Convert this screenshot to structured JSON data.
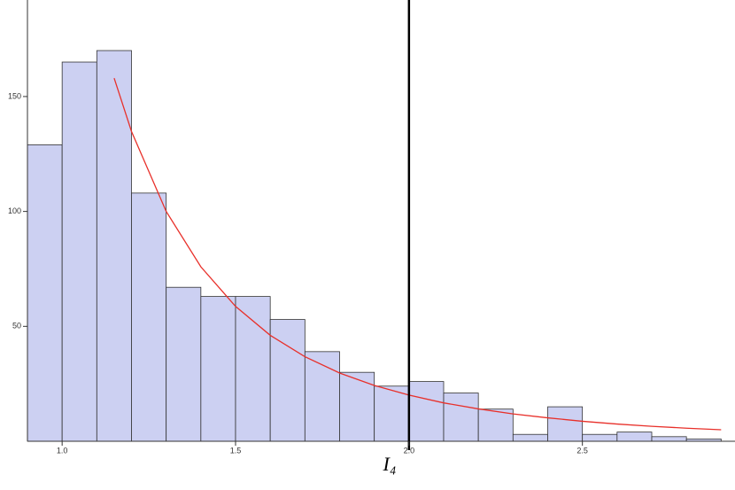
{
  "chart_data": {
    "type": "histogram",
    "bins": [
      0.9,
      1.0,
      1.1,
      1.2,
      1.3,
      1.4,
      1.5,
      1.6,
      1.7,
      1.8,
      1.9,
      2.0,
      2.1,
      2.2,
      2.3,
      2.4,
      2.5,
      2.6,
      2.7,
      2.8,
      2.9
    ],
    "values": [
      129,
      165,
      170,
      108,
      67,
      63,
      63,
      53,
      39,
      30,
      24,
      26,
      21,
      14,
      3,
      15,
      3,
      4,
      2,
      1
    ],
    "color": "#ccd0f2",
    "curve": {
      "color": "#e8302a",
      "x": [
        1.15,
        1.2,
        1.3,
        1.4,
        1.5,
        1.6,
        1.7,
        1.8,
        1.9,
        2.0,
        2.1,
        2.2,
        2.3,
        2.4,
        2.5,
        2.6,
        2.7,
        2.8,
        2.9
      ],
      "values": [
        158,
        134.8,
        100,
        75.9,
        58.7,
        46.1,
        36.8,
        29.7,
        24.3,
        20.1,
        16.7,
        14.1,
        11.9,
        10.2,
        8.7,
        7.5,
        6.5,
        5.7,
        5.0
      ]
    },
    "vline": {
      "x": 2.0,
      "color": "#000000"
    },
    "x_label": "I₄",
    "xlim": [
      0.9,
      2.94
    ],
    "ylim": [
      0,
      192
    ],
    "xticks": [
      {
        "value": 1.0,
        "label": "1.0"
      },
      {
        "value": 1.5,
        "label": "1.5"
      },
      {
        "value": 2.0,
        "label": "2.0"
      },
      {
        "value": 2.5,
        "label": "2.5"
      }
    ],
    "yticks": [
      50,
      100,
      150
    ]
  }
}
